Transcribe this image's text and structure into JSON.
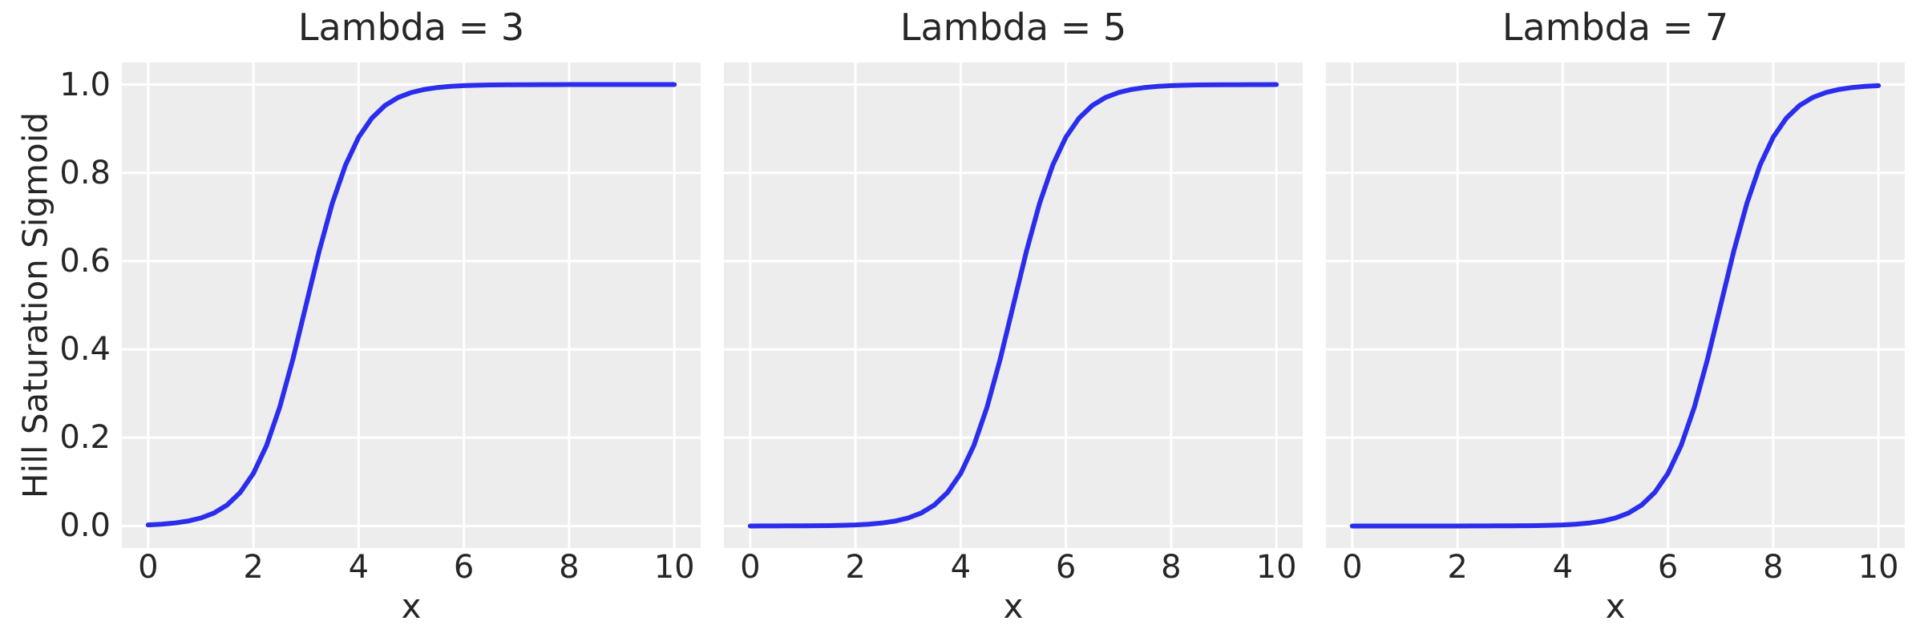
{
  "figure": {
    "ylabel": "Hill Saturation Sigmoid",
    "xlabel": "x"
  },
  "style": {
    "figure_background": "#ffffff",
    "axes_background": "#ededed",
    "grid_color": "#ffffff",
    "line_color": "#2a2eec",
    "text_color": "#262626"
  },
  "chart_data": [
    {
      "type": "line",
      "title": "Lambda = 3",
      "xlabel": "x",
      "ylabel": "Hill Saturation Sigmoid",
      "xlim": [
        -0.5,
        10.5
      ],
      "ylim": [
        -0.05,
        1.05
      ],
      "xticks": [
        0,
        2,
        4,
        6,
        8,
        10
      ],
      "xtick_labels": [
        "0",
        "2",
        "4",
        "6",
        "8",
        "10"
      ],
      "yticks": [
        0.0,
        0.2,
        0.4,
        0.6,
        0.8,
        1.0
      ],
      "ytick_labels": [
        "0.0",
        "0.2",
        "0.4",
        "0.6",
        "0.8",
        "1.0"
      ],
      "show_ytick_labels": true,
      "grid": true,
      "legend": false,
      "line_color": "#2a2eec",
      "x": [
        0,
        0.25,
        0.5,
        0.75,
        1,
        1.25,
        1.5,
        1.75,
        2,
        2.25,
        2.5,
        2.75,
        3,
        3.25,
        3.5,
        3.75,
        4,
        4.25,
        4.5,
        4.75,
        5,
        5.25,
        5.5,
        5.75,
        6,
        6.25,
        6.5,
        6.75,
        7,
        7.25,
        7.5,
        7.75,
        8,
        8.25,
        8.5,
        8.75,
        9,
        9.25,
        9.5,
        9.75,
        10
      ],
      "y": [
        0.0025,
        0.0041,
        0.0067,
        0.011,
        0.018,
        0.0293,
        0.0474,
        0.0759,
        0.1192,
        0.1824,
        0.2689,
        0.3775,
        0.5,
        0.6225,
        0.7311,
        0.8176,
        0.8808,
        0.9241,
        0.9526,
        0.9707,
        0.982,
        0.989,
        0.9933,
        0.9959,
        0.9975,
        0.9985,
        0.9991,
        0.9994,
        0.9997,
        0.9998,
        0.9999,
        0.9999,
        1.0,
        1.0,
        1.0,
        1.0,
        1.0,
        1.0,
        1.0,
        1.0,
        1.0
      ]
    },
    {
      "type": "line",
      "title": "Lambda = 5",
      "xlabel": "x",
      "ylabel": "Hill Saturation Sigmoid",
      "xlim": [
        -0.5,
        10.5
      ],
      "ylim": [
        -0.05,
        1.05
      ],
      "xticks": [
        0,
        2,
        4,
        6,
        8,
        10
      ],
      "xtick_labels": [
        "0",
        "2",
        "4",
        "6",
        "8",
        "10"
      ],
      "yticks": [
        0.0,
        0.2,
        0.4,
        0.6,
        0.8,
        1.0
      ],
      "ytick_labels": [
        "0.0",
        "0.2",
        "0.4",
        "0.6",
        "0.8",
        "1.0"
      ],
      "show_ytick_labels": false,
      "grid": true,
      "legend": false,
      "line_color": "#2a2eec",
      "x": [
        0,
        0.25,
        0.5,
        0.75,
        1,
        1.25,
        1.5,
        1.75,
        2,
        2.25,
        2.5,
        2.75,
        3,
        3.25,
        3.5,
        3.75,
        4,
        4.25,
        4.5,
        4.75,
        5,
        5.25,
        5.5,
        5.75,
        6,
        6.25,
        6.5,
        6.75,
        7,
        7.25,
        7.5,
        7.75,
        8,
        8.25,
        8.5,
        8.75,
        9,
        9.25,
        9.5,
        9.75,
        10
      ],
      "y": [
        0.0,
        0.0001,
        0.0001,
        0.0002,
        0.0003,
        0.0006,
        0.0009,
        0.0015,
        0.0025,
        0.0041,
        0.0067,
        0.011,
        0.018,
        0.0293,
        0.0474,
        0.0759,
        0.1192,
        0.1824,
        0.2689,
        0.3775,
        0.5,
        0.6225,
        0.7311,
        0.8176,
        0.8808,
        0.9241,
        0.9526,
        0.9707,
        0.982,
        0.989,
        0.9933,
        0.9959,
        0.9975,
        0.9985,
        0.9991,
        0.9994,
        0.9997,
        0.9998,
        0.9999,
        0.9999,
        1.0
      ]
    },
    {
      "type": "line",
      "title": "Lambda = 7",
      "xlabel": "x",
      "ylabel": "Hill Saturation Sigmoid",
      "xlim": [
        -0.5,
        10.5
      ],
      "ylim": [
        -0.05,
        1.05
      ],
      "xticks": [
        0,
        2,
        4,
        6,
        8,
        10
      ],
      "xtick_labels": [
        "0",
        "2",
        "4",
        "6",
        "8",
        "10"
      ],
      "yticks": [
        0.0,
        0.2,
        0.4,
        0.6,
        0.8,
        1.0
      ],
      "ytick_labels": [
        "0.0",
        "0.2",
        "0.4",
        "0.6",
        "0.8",
        "1.0"
      ],
      "show_ytick_labels": false,
      "grid": true,
      "legend": false,
      "line_color": "#2a2eec",
      "x": [
        0,
        0.25,
        0.5,
        0.75,
        1,
        1.25,
        1.5,
        1.75,
        2,
        2.25,
        2.5,
        2.75,
        3,
        3.25,
        3.5,
        3.75,
        4,
        4.25,
        4.5,
        4.75,
        5,
        5.25,
        5.5,
        5.75,
        6,
        6.25,
        6.5,
        6.75,
        7,
        7.25,
        7.5,
        7.75,
        8,
        8.25,
        8.5,
        8.75,
        9,
        9.25,
        9.5,
        9.75,
        10
      ],
      "y": [
        0.0,
        0.0,
        0.0,
        0.0,
        0.0,
        0.0,
        0.0,
        0.0,
        0.0,
        0.0001,
        0.0001,
        0.0002,
        0.0003,
        0.0006,
        0.0009,
        0.0015,
        0.0025,
        0.0041,
        0.0067,
        0.011,
        0.018,
        0.0293,
        0.0474,
        0.0759,
        0.1192,
        0.1824,
        0.2689,
        0.3775,
        0.5,
        0.6225,
        0.7311,
        0.8176,
        0.8808,
        0.9241,
        0.9526,
        0.9707,
        0.982,
        0.989,
        0.9933,
        0.9959,
        0.9975
      ]
    }
  ]
}
